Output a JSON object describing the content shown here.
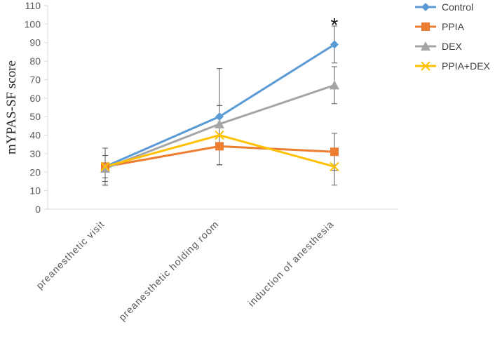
{
  "chart_data": {
    "type": "line",
    "title": "",
    "xlabel": "",
    "ylabel": "mYPAS-SF score",
    "ylim": [
      0,
      110
    ],
    "ytick_step": 10,
    "grid": false,
    "legend_position": "top-right",
    "categories": [
      "preanesthetic visit",
      "preanesthetic holding room",
      "induction of anesthesia"
    ],
    "series": [
      {
        "name": "Control",
        "marker": "diamond",
        "color": "#5B9BD5",
        "values": [
          23,
          50,
          89
        ],
        "error": [
          10,
          26,
          10
        ]
      },
      {
        "name": "PPIA",
        "marker": "square",
        "color": "#ED7D31",
        "values": [
          23,
          34,
          31
        ],
        "error": [
          10,
          10,
          10
        ]
      },
      {
        "name": "DEX",
        "marker": "triangle",
        "color": "#A5A5A5",
        "values": [
          22,
          46,
          67
        ],
        "error": [
          7,
          10,
          10
        ]
      },
      {
        "name": "PPIA+DEX",
        "marker": "x",
        "color": "#FFC000",
        "values": [
          23,
          40,
          23
        ],
        "error": [
          6,
          16,
          10
        ]
      }
    ],
    "annotations": [
      {
        "text": "*",
        "category": "induction of anesthesia",
        "y": 99
      }
    ]
  }
}
